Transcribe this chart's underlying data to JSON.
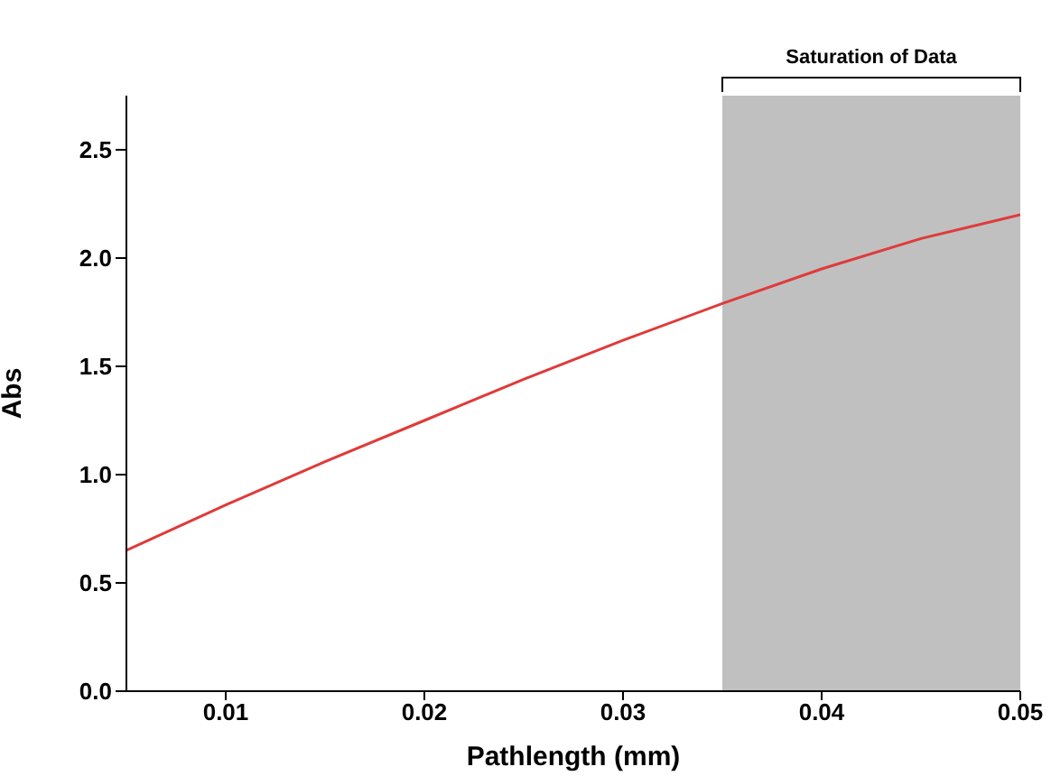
{
  "chart_data": {
    "type": "line",
    "xlabel": "Pathlength (mm)",
    "ylabel": "Abs",
    "x": [
      0.005,
      0.01,
      0.015,
      0.02,
      0.025,
      0.03,
      0.035,
      0.04,
      0.045,
      0.05
    ],
    "series": [
      {
        "color": "#e03a3a",
        "values": [
          0.65,
          0.86,
          1.06,
          1.25,
          1.44,
          1.62,
          1.79,
          1.95,
          2.09,
          2.2
        ]
      }
    ],
    "xlim": [
      0.005,
      0.05
    ],
    "xticks": [
      0.01,
      0.02,
      0.03,
      0.04,
      0.05
    ],
    "ylim": [
      0,
      2.75
    ],
    "yticks": [
      {
        "value": 0,
        "label": "0.0"
      },
      {
        "value": 0.5,
        "label": "0.5"
      },
      {
        "value": 1,
        "label": "1.0"
      },
      {
        "value": 1.5,
        "label": "1.5"
      },
      {
        "value": 2,
        "label": "2.0"
      },
      {
        "value": 2.5,
        "label": "2.5"
      }
    ],
    "bands": [
      {
        "axis": "x",
        "from": 0.035,
        "to": 0.05,
        "label": "Saturation of Data",
        "color": "#c0c0c0"
      }
    ],
    "grid": false,
    "marker": "none",
    "line_style": "solid"
  }
}
